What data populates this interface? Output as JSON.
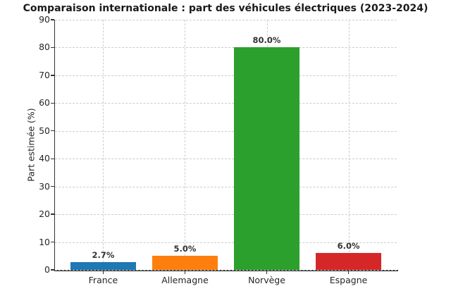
{
  "title": "Comparaison internationale : part des véhicules électriques (2023-2024)",
  "chart_data": {
    "type": "bar",
    "title": "Comparaison internationale : part des véhicules électriques (2023-2024)",
    "categories": [
      "France",
      "Allemagne",
      "Norvège",
      "Espagne"
    ],
    "values": [
      2.7,
      5.0,
      80.0,
      6.0
    ],
    "value_labels": [
      "2.7%",
      "5.0%",
      "80.0%",
      "6.0%"
    ],
    "bar_colors": [
      "#1f77b4",
      "#ff7f0e",
      "#2ca02c",
      "#d62728"
    ],
    "xlabel": "",
    "ylabel": "Part estimée (%)",
    "ylim": [
      0,
      90
    ],
    "yticks": [
      0,
      10,
      20,
      30,
      40,
      50,
      60,
      70,
      80,
      90
    ],
    "grid": "dashed",
    "grid_color": "#cccccc",
    "axis_color": "#333333",
    "bar_width_fraction": 0.8,
    "legend": "none"
  }
}
